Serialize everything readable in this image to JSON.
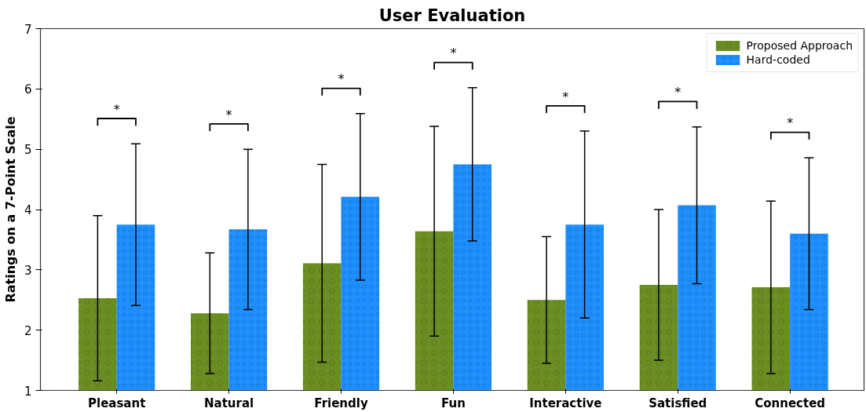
{
  "chart_data": {
    "type": "bar",
    "title": "User Evaluation",
    "ylabel": "Ratings on a 7-Point Scale",
    "categories": [
      "Pleasant",
      "Natural",
      "Friendly",
      "Fun",
      "Interactive",
      "Satisfied",
      "Connected"
    ],
    "series": [
      {
        "name": "Proposed Approach",
        "color": "#6b8e23",
        "values": [
          2.53,
          2.28,
          3.11,
          3.64,
          2.5,
          2.75,
          2.71
        ],
        "errors": [
          1.37,
          1.0,
          1.64,
          1.74,
          1.05,
          1.25,
          1.43
        ]
      },
      {
        "name": "Hard-coded",
        "color": "#1e90ff",
        "values": [
          3.75,
          3.67,
          4.21,
          4.75,
          3.75,
          4.07,
          3.6
        ],
        "errors": [
          1.34,
          1.33,
          1.38,
          1.27,
          1.55,
          1.3,
          1.26
        ]
      }
    ],
    "ylim": [
      1,
      7
    ],
    "yticks": [
      1,
      2,
      3,
      4,
      5,
      6,
      7
    ],
    "legend": "top right",
    "annotations": [
      "*",
      "*",
      "*",
      "*",
      "*",
      "*",
      "*"
    ]
  }
}
